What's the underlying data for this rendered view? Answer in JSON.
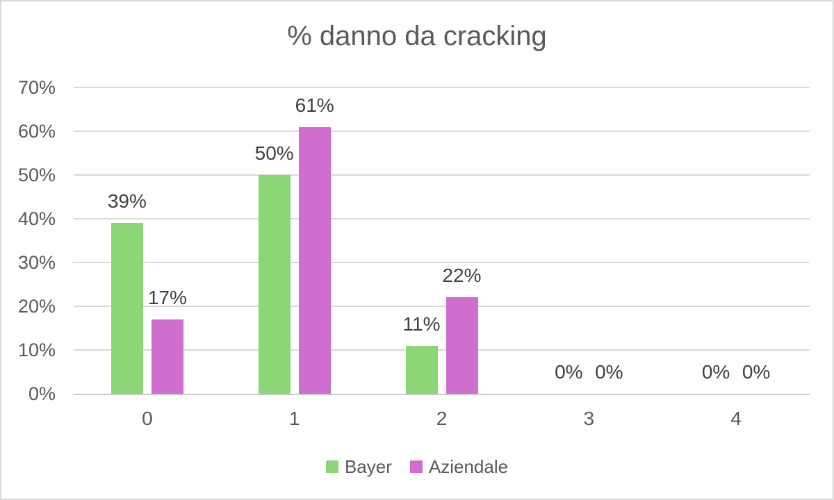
{
  "chart_data": {
    "type": "bar",
    "title": "% danno da cracking",
    "categories": [
      "0",
      "1",
      "2",
      "3",
      "4"
    ],
    "series": [
      {
        "name": "Bayer",
        "color": "#8BD676",
        "values": [
          39,
          50,
          11,
          0,
          0
        ],
        "labels": [
          "39%",
          "50%",
          "11%",
          "0%",
          "0%"
        ]
      },
      {
        "name": "Aziendale",
        "color": "#CF6ECE",
        "values": [
          17,
          61,
          22,
          0,
          0
        ],
        "labels": [
          "17%",
          "61%",
          "22%",
          "0%",
          "0%"
        ]
      }
    ],
    "y_axis": {
      "min": 0,
      "max": 70,
      "step": 10,
      "tick_labels": [
        "0%",
        "10%",
        "20%",
        "30%",
        "40%",
        "50%",
        "60%",
        "70%"
      ]
    },
    "grid": "on",
    "legend_position": "bottom",
    "colors": {
      "background": "#FFFFFF",
      "chart_border": "#D9D9D9",
      "gridline": "#D9D9D9",
      "axis_line": "#C9C9C9",
      "title_text": "#595959",
      "axis_label_text": "#595959",
      "data_label_text": "#404040",
      "legend_text": "#595959"
    }
  }
}
